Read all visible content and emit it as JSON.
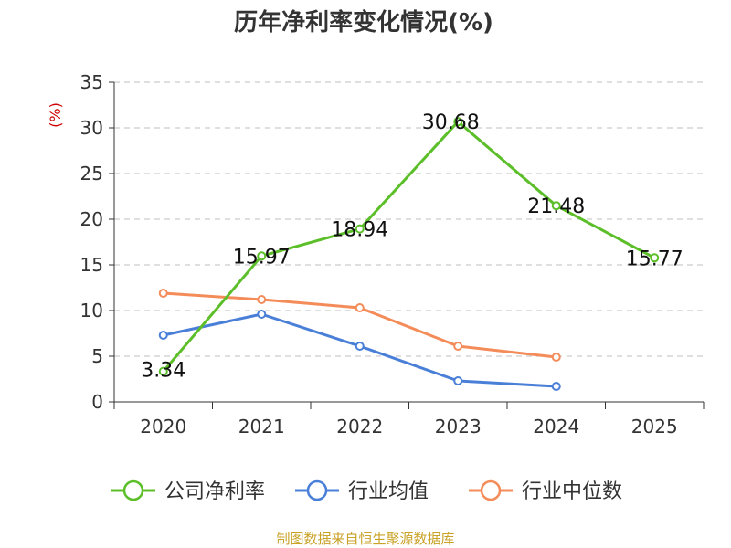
{
  "chart_data": {
    "type": "line",
    "title": "历年净利率变化情况(%)",
    "ylabel": "(%)",
    "xlabel": "",
    "categories": [
      "2020",
      "2021",
      "2022",
      "2023",
      "2024",
      "2025"
    ],
    "ylim": [
      0,
      35
    ],
    "yticks": [
      0,
      5,
      10,
      15,
      20,
      25,
      30,
      35
    ],
    "grid": true,
    "legend_position": "bottom",
    "series": [
      {
        "name": "公司净利率",
        "color": "#5cbf2a",
        "values": [
          3.34,
          15.97,
          18.94,
          30.68,
          21.48,
          15.77
        ],
        "labels": [
          "3.34",
          "15.97",
          "18.94",
          "30.68",
          "21.48",
          "15.77"
        ]
      },
      {
        "name": "行业均值",
        "color": "#4a7fd8",
        "values": [
          7.3,
          9.6,
          6.1,
          2.3,
          1.7,
          null
        ]
      },
      {
        "name": "行业中位数",
        "color": "#f48c5a",
        "values": [
          11.9,
          11.2,
          10.3,
          6.1,
          4.9,
          null
        ]
      }
    ],
    "source": "制图数据来自恒生聚源数据库"
  }
}
